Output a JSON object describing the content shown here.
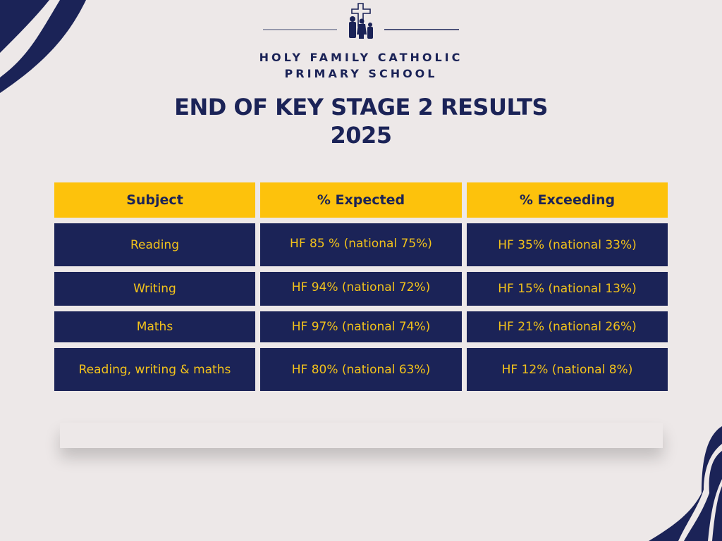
{
  "school": {
    "line1": "HOLY FAMILY CATHOLIC",
    "line2": "PRIMARY SCHOOL",
    "logo_icon": "cross-family-icon"
  },
  "title": {
    "line1": "END OF KEY STAGE 2 RESULTS",
    "line2": "2025"
  },
  "colors": {
    "background": "#ede8e8",
    "navy": "#1b2357",
    "yellow": "#fdc20c"
  },
  "table": {
    "headers": [
      "Subject",
      "% Expected",
      "% Exceeding"
    ],
    "rows": [
      [
        "Reading",
        "HF 85 % (national 75%)",
        "HF 35% (national 33%)"
      ],
      [
        "Writing",
        "HF 94% (national 72%)",
        "HF 15% (national 13%)"
      ],
      [
        "Maths",
        "HF 97% (national 74%)",
        "HF 21% (national 26%)"
      ],
      [
        "Reading, writing & maths",
        "HF 80% (national 63%)",
        "HF 12% (national 8%)"
      ]
    ]
  }
}
